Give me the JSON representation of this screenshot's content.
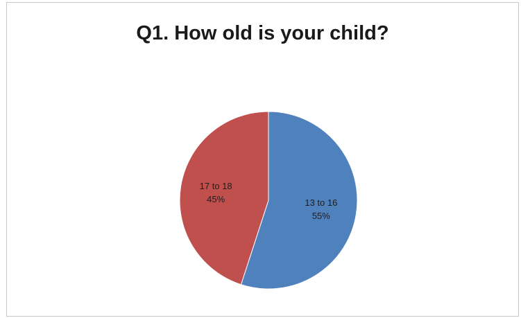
{
  "chart_data": {
    "type": "pie",
    "title": "Q1. How old is your child?",
    "slices": [
      {
        "label": "13 to 16",
        "percent_label": "55%",
        "value": 55,
        "color": "#4f81bd"
      },
      {
        "label": "17 to 18",
        "percent_label": "45%",
        "value": 45,
        "color": "#c0504d"
      }
    ],
    "start_angle_deg": 0,
    "direction": "clockwise",
    "legend": "none"
  }
}
